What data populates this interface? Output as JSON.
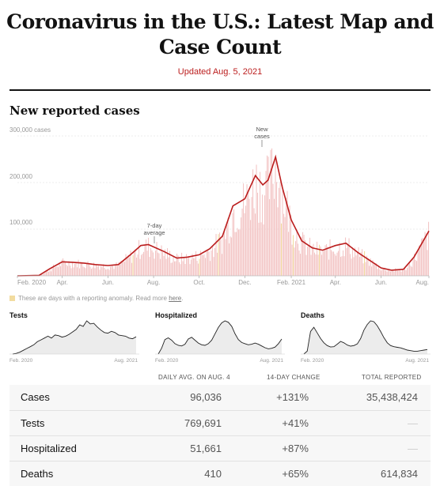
{
  "page": {
    "title": "Coronavirus in the U.S.: Latest Map and Case Count",
    "updated": "Updated Aug. 5, 2021"
  },
  "main_chart": {
    "section_title": "New reported cases",
    "ytick_labels": [
      "300,000 cases",
      "200,000",
      "100,000"
    ],
    "xtick_labels": [
      "Feb. 2020",
      "Apr.",
      "Jun.",
      "Aug.",
      "Oct.",
      "Dec.",
      "Feb. 2021",
      "Apr.",
      "Jun.",
      "Aug."
    ],
    "annotation_avg": [
      "7-day",
      "average"
    ],
    "annotation_new": [
      "New",
      "cases"
    ],
    "note_text": "These are days with a reporting anomaly. Read more",
    "note_link": "here",
    "note_end": ".",
    "colors": {
      "line": "#bb1d1d",
      "bars": "#f3c6c6",
      "anomaly": "#f2dca0"
    }
  },
  "chart_data": {
    "type": "area",
    "title": "New reported cases",
    "ylabel": "cases",
    "ylim": [
      0,
      300000
    ],
    "x": [
      "2020-02-01",
      "2020-03-01",
      "2020-03-15",
      "2020-04-01",
      "2020-04-15",
      "2020-05-01",
      "2020-05-15",
      "2020-06-01",
      "2020-06-15",
      "2020-07-01",
      "2020-07-15",
      "2020-07-25",
      "2020-08-15",
      "2020-09-01",
      "2020-09-15",
      "2020-10-01",
      "2020-10-15",
      "2020-11-01",
      "2020-11-15",
      "2020-12-01",
      "2020-12-15",
      "2020-12-25",
      "2021-01-01",
      "2021-01-11",
      "2021-01-20",
      "2021-02-01",
      "2021-02-15",
      "2021-03-01",
      "2021-03-15",
      "2021-04-01",
      "2021-04-15",
      "2021-05-01",
      "2021-05-15",
      "2021-06-01",
      "2021-06-15",
      "2021-07-01",
      "2021-07-15",
      "2021-08-04"
    ],
    "series": [
      {
        "values": [
          0,
          1000,
          15000,
          30000,
          29000,
          27000,
          24000,
          22000,
          24000,
          45000,
          65000,
          67000,
          52000,
          38000,
          40000,
          45000,
          58000,
          85000,
          150000,
          165000,
          215000,
          195000,
          205000,
          255000,
          190000,
          120000,
          75000,
          60000,
          55000,
          65000,
          70000,
          50000,
          35000,
          17000,
          12000,
          14000,
          40000,
          96036
        ]
      }
    ]
  },
  "mini_charts": [
    {
      "title": "Tests",
      "x_start": "Feb. 2020",
      "x_end": "Aug. 2021",
      "values": [
        0,
        2,
        6,
        12,
        18,
        24,
        30,
        40,
        46,
        52,
        58,
        52,
        62,
        60,
        55,
        58,
        64,
        72,
        80,
        95,
        90,
        108,
        98,
        100,
        88,
        78,
        70,
        68,
        74,
        70,
        62,
        60,
        58,
        52,
        50,
        56
      ]
    },
    {
      "title": "Hospitalized",
      "x_start": "Feb. 2020",
      "x_end": "Aug. 2021",
      "values": [
        0,
        20,
        50,
        56,
        48,
        36,
        30,
        28,
        34,
        52,
        58,
        48,
        38,
        32,
        30,
        36,
        48,
        70,
        92,
        108,
        115,
        110,
        96,
        70,
        50,
        40,
        36,
        32,
        34,
        38,
        34,
        28,
        22,
        18,
        20,
        24,
        36,
        52
      ]
    },
    {
      "title": "Deaths",
      "x_start": "Feb. 2020",
      "x_end": "Aug. 2021",
      "values": [
        0,
        10,
        80,
        95,
        75,
        55,
        40,
        30,
        25,
        26,
        35,
        45,
        40,
        32,
        28,
        30,
        36,
        55,
        85,
        105,
        118,
        115,
        100,
        80,
        58,
        40,
        30,
        26,
        24,
        22,
        18,
        14,
        12,
        10,
        10,
        12,
        14,
        16
      ]
    }
  ],
  "table": {
    "headers": [
      "DAILY AVG. ON AUG. 4",
      "14-DAY CHANGE",
      "TOTAL REPORTED"
    ],
    "rows": [
      {
        "name": "Cases",
        "avg": "96,036",
        "change": "+131%",
        "total": "35,438,424"
      },
      {
        "name": "Tests",
        "avg": "769,691",
        "change": "+41%",
        "total": "—"
      },
      {
        "name": "Hospitalized",
        "avg": "51,661",
        "change": "+87%",
        "total": "—"
      },
      {
        "name": "Deaths",
        "avg": "410",
        "change": "+65%",
        "total": "614,834"
      }
    ]
  }
}
